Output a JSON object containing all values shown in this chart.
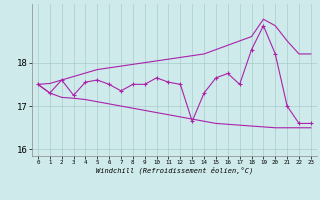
{
  "xlabel": "Windchill (Refroidissement éolien,°C)",
  "background_color": "#ceeaea",
  "line_color": "#aa22aa",
  "grid_color": "#aacccc",
  "hours": [
    0,
    1,
    2,
    3,
    4,
    5,
    6,
    7,
    8,
    9,
    10,
    11,
    12,
    13,
    14,
    15,
    16,
    17,
    18,
    19,
    20,
    21,
    22,
    23
  ],
  "windchill": [
    17.5,
    17.3,
    17.6,
    17.25,
    17.55,
    17.6,
    17.5,
    17.35,
    17.5,
    17.5,
    17.65,
    17.55,
    17.5,
    16.65,
    17.3,
    17.65,
    17.75,
    17.5,
    18.3,
    18.85,
    18.2,
    17.0,
    16.6,
    16.6
  ],
  "max_line": [
    17.5,
    17.52,
    17.6,
    17.68,
    17.76,
    17.84,
    17.88,
    17.92,
    17.96,
    18.0,
    18.04,
    18.08,
    18.12,
    18.16,
    18.2,
    18.3,
    18.4,
    18.5,
    18.6,
    19.0,
    18.85,
    18.5,
    18.2,
    18.2
  ],
  "min_line": [
    17.5,
    17.3,
    17.2,
    17.18,
    17.15,
    17.1,
    17.05,
    17.0,
    16.95,
    16.9,
    16.85,
    16.8,
    16.75,
    16.7,
    16.65,
    16.6,
    16.58,
    16.56,
    16.54,
    16.52,
    16.5,
    16.5,
    16.5,
    16.5
  ],
  "ylim": [
    15.85,
    19.35
  ],
  "yticks": [
    16,
    17,
    18
  ],
  "xticks": [
    0,
    1,
    2,
    3,
    4,
    5,
    6,
    7,
    8,
    9,
    10,
    11,
    12,
    13,
    14,
    15,
    16,
    17,
    18,
    19,
    20,
    21,
    22,
    23
  ]
}
